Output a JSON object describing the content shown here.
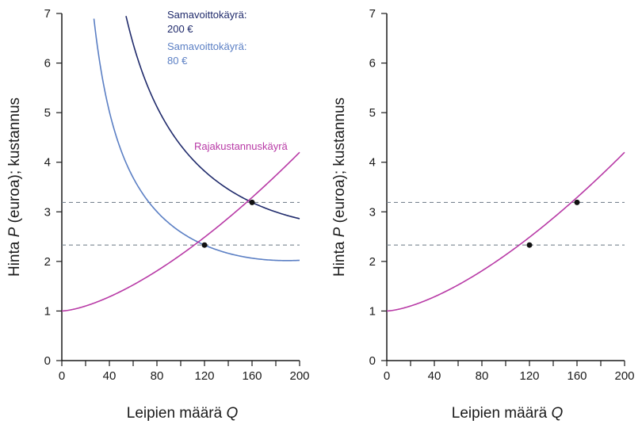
{
  "colors": {
    "isoprofit_200": "#1f2a6b",
    "isoprofit_80": "#5b7fc4",
    "marginal_cost": "#b83aa6",
    "guides": "#7a8591",
    "axis": "#1a1a1a",
    "points": "#111111"
  },
  "chart_data": [
    {
      "type": "line",
      "panel": "left",
      "xlabel_prefix": "Leipien määrä ",
      "xlabel_var": "Q",
      "ylabel_prefix": "Hinta ",
      "ylabel_var": "P",
      "ylabel_suffix": " (euroa); kustannus",
      "xlim": [
        0,
        200
      ],
      "ylim": [
        0,
        7
      ],
      "xticks": [
        0,
        40,
        80,
        120,
        160,
        200
      ],
      "yticks": [
        0,
        1,
        2,
        3,
        4,
        5,
        6,
        7
      ],
      "series": [
        {
          "name": "Samavoittokäyrä: 200 €",
          "key": "isoprofit_200",
          "profit": 200
        },
        {
          "name": "Samavoittokäyrä: 80 €",
          "key": "isoprofit_80",
          "profit": 80
        },
        {
          "name": "Rajakustannuskäyrä",
          "key": "marginal_cost"
        }
      ],
      "guide_lines_y": [
        3.19,
        2.33
      ],
      "points": [
        {
          "x": 120,
          "y": 2.33
        },
        {
          "x": 160,
          "y": 3.19
        }
      ],
      "annotations": {
        "isoprofit_200_line1": "Samavoittokäyrä:",
        "isoprofit_200_line2": "200 €",
        "isoprofit_80_line1": "Samavoittokäyrä:",
        "isoprofit_80_line2": "80 €",
        "marginal_cost": "Rajakustannuskäyrä"
      }
    },
    {
      "type": "line",
      "panel": "right",
      "xlabel_prefix": "Leipien määrä ",
      "xlabel_var": "Q",
      "ylabel_prefix": "Hinta ",
      "ylabel_var": "P",
      "ylabel_suffix": " (euroa); kustannus",
      "xlim": [
        0,
        200
      ],
      "ylim": [
        0,
        7
      ],
      "xticks": [
        0,
        40,
        80,
        120,
        160,
        200
      ],
      "yticks": [
        0,
        1,
        2,
        3,
        4,
        5,
        6,
        7
      ],
      "series": [
        {
          "name": "Rajakustannuskäyrä",
          "key": "marginal_cost"
        }
      ],
      "guide_lines_y": [
        3.19,
        2.33
      ],
      "points": [
        {
          "x": 120,
          "y": 2.33
        },
        {
          "x": 160,
          "y": 3.19
        }
      ]
    }
  ]
}
